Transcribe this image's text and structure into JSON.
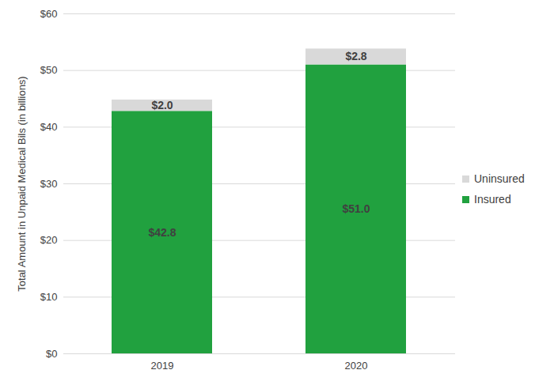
{
  "chart_data": {
    "type": "bar",
    "stacked": true,
    "ylabel": "Total Amount in Unpaid Medical Bils (in billions)",
    "categories": [
      "2019",
      "2020"
    ],
    "series": [
      {
        "name": "Insured",
        "color": "#21a13f",
        "values": [
          42.8,
          51.0
        ],
        "value_labels": [
          "$42.8",
          "$51.0"
        ]
      },
      {
        "name": "Uninsured",
        "color": "#d9d9d9",
        "values": [
          2.0,
          2.8
        ],
        "value_labels": [
          "$2.0",
          "$2.8"
        ]
      }
    ],
    "ylim": [
      0,
      60
    ],
    "yticks": [
      {
        "value": 0,
        "label": "$0"
      },
      {
        "value": 10,
        "label": "$10"
      },
      {
        "value": 20,
        "label": "$20"
      },
      {
        "value": 30,
        "label": "$30"
      },
      {
        "value": 40,
        "label": "$40"
      },
      {
        "value": 50,
        "label": "$50"
      },
      {
        "value": 60,
        "label": "$60"
      }
    ],
    "grid": true,
    "data_labels": true,
    "legend": "right"
  }
}
